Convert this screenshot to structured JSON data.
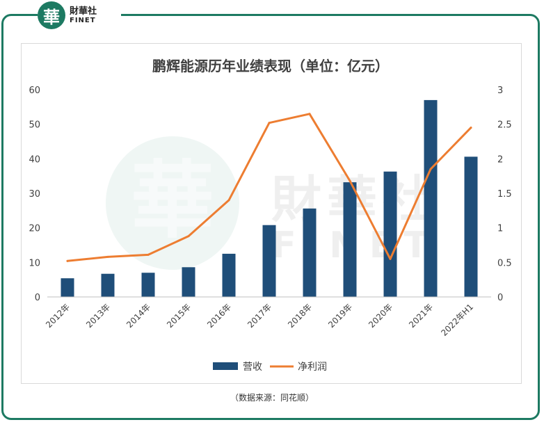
{
  "brand": {
    "seal_char": "華",
    "name_cn": "財華社",
    "name_en": "FINET"
  },
  "watermark": {
    "seal_char": "華",
    "name_cn": "財華社",
    "name_en": "FINET"
  },
  "source_note": "（数据来源：同花顺）",
  "colors": {
    "frame": "#1d7a62",
    "bar": "#1f4e79",
    "line": "#ed7d31"
  },
  "chart_data": {
    "type": "bar",
    "title": "鹏辉能源历年业绩表现（单位：亿元）",
    "categories": [
      "2012年",
      "2013年",
      "2014年",
      "2015年",
      "2016年",
      "2017年",
      "2018年",
      "2019年",
      "2020年",
      "2021年",
      "2022年H1"
    ],
    "series": [
      {
        "name": "营收",
        "type": "bar",
        "axis": "left",
        "values": [
          5.4,
          6.7,
          7.0,
          8.6,
          12.5,
          20.8,
          25.6,
          33.2,
          36.3,
          57.0,
          40.6
        ]
      },
      {
        "name": "净利润",
        "type": "line",
        "axis": "right",
        "values": [
          0.52,
          0.58,
          0.61,
          0.88,
          1.4,
          2.52,
          2.65,
          1.68,
          0.55,
          1.85,
          2.45
        ]
      }
    ],
    "y_left": {
      "min": 0,
      "max": 60,
      "ticks": [
        "0",
        "10",
        "20",
        "30",
        "40",
        "50",
        "60"
      ]
    },
    "y_right": {
      "min": 0,
      "max": 3,
      "ticks": [
        "0",
        "0.5",
        "1",
        "1.5",
        "2",
        "2.5",
        "3"
      ]
    },
    "legend": [
      "营收",
      "净利润"
    ],
    "legend_position": "bottom",
    "grid": false
  }
}
